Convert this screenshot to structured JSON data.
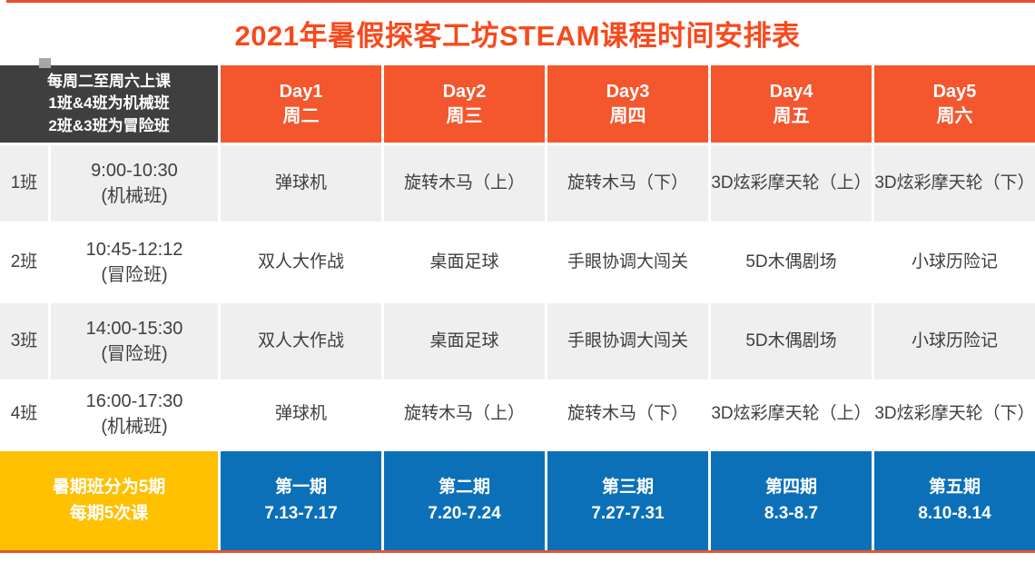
{
  "title": "2021年暑假探客工坊STEAM课程时间安排表",
  "header": {
    "note_lines": [
      "每周二至周六上课",
      "1班&4班为机械班",
      "2班&3班为冒险班"
    ],
    "days": [
      {
        "day": "Day1",
        "weekday": "周二"
      },
      {
        "day": "Day2",
        "weekday": "周三"
      },
      {
        "day": "Day3",
        "weekday": "周四"
      },
      {
        "day": "Day4",
        "weekday": "周五"
      },
      {
        "day": "Day5",
        "weekday": "周六"
      }
    ]
  },
  "rows": [
    {
      "class_label": "1班",
      "time": "9:00-10:30",
      "class_type": "(机械班)",
      "activities": [
        "弹球机",
        "旋转木马（上）",
        "旋转木马（下）",
        "3D炫彩摩天轮（上）",
        "3D炫彩摩天轮（下）"
      ]
    },
    {
      "class_label": "2班",
      "time": "10:45-12:12",
      "class_type": "(冒险班)",
      "activities": [
        "双人大作战",
        "桌面足球",
        "手眼协调大闯关",
        "5D木偶剧场",
        "小球历险记"
      ]
    },
    {
      "class_label": "3班",
      "time": "14:00-15:30",
      "class_type": "(冒险班)",
      "activities": [
        "双人大作战",
        "桌面足球",
        "手眼协调大闯关",
        "5D木偶剧场",
        "小球历险记"
      ]
    },
    {
      "class_label": "4班",
      "time": "16:00-17:30",
      "class_type": "(机械班)",
      "activities": [
        "弹球机",
        "旋转木马（上）",
        "旋转木马（下）",
        "3D炫彩摩天轮（上）",
        "3D炫彩摩天轮（下）"
      ]
    }
  ],
  "footer": {
    "note_lines": [
      "暑期班分为5期",
      "每期5次课"
    ],
    "sessions": [
      {
        "name": "第一期",
        "dates": "7.13-7.17"
      },
      {
        "name": "第二期",
        "dates": "7.20-7.24"
      },
      {
        "name": "第三期",
        "dates": "7.27-7.31"
      },
      {
        "name": "第四期",
        "dates": "8.3-8.7"
      },
      {
        "name": "第五期",
        "dates": "8.10-8.14"
      }
    ]
  },
  "colors": {
    "accent_orange": "#F4562D",
    "title_orange": "#F8491C",
    "dark_header": "#3F3F3F",
    "row_gray": "#EFEFEF",
    "footer_yellow": "#FFC000",
    "footer_blue": "#0C70B8",
    "underline_orange": "#E0572F"
  }
}
